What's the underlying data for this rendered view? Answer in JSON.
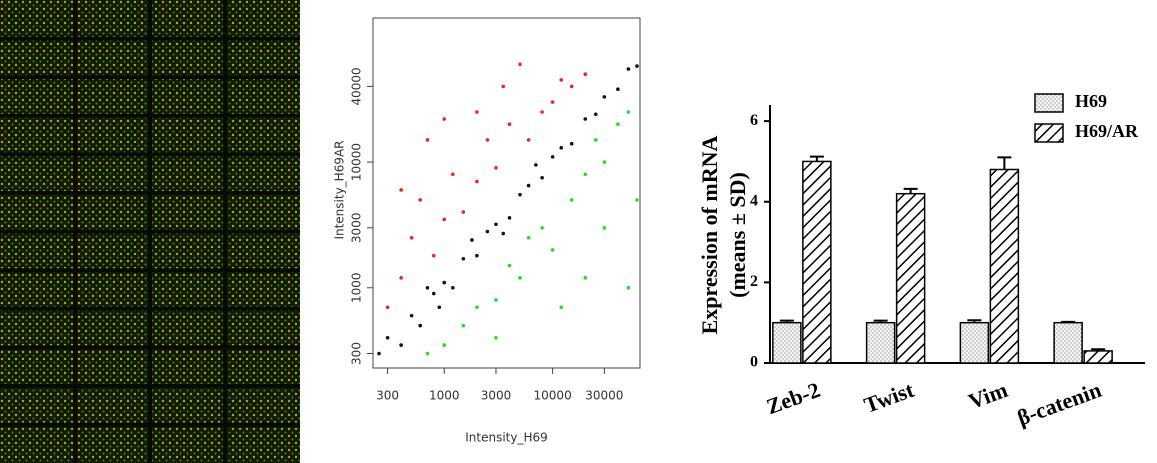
{
  "chart_data": [
    {
      "type": "scatter",
      "xscale": "log",
      "yscale": "log",
      "xlabel": "Intensity_H69",
      "ylabel": "Intensity_H69AR",
      "xlim": [
        220,
        64000
      ],
      "ylim": [
        230,
        140000
      ],
      "xticks": [
        300,
        1000,
        3000,
        10000,
        30000
      ],
      "yticks": [
        300,
        1000,
        3000,
        10000,
        40000
      ],
      "series": [
        {
          "color": "#111111",
          "x": [
            250,
            300,
            400,
            500,
            600,
            800,
            1000,
            1200,
            1500,
            2000,
            2500,
            3000,
            4000,
            5000,
            6000,
            8000,
            10000,
            12000,
            15000,
            20000,
            25000,
            30000,
            40000,
            50000,
            60000,
            700,
            900,
            1800,
            3500,
            7000
          ],
          "values": [
            300,
            400,
            350,
            600,
            500,
            900,
            1100,
            1000,
            1700,
            1800,
            2800,
            3200,
            3600,
            5500,
            6500,
            7500,
            11000,
            13000,
            14000,
            22000,
            24000,
            33000,
            38000,
            55000,
            58000,
            1000,
            700,
            2400,
            2700,
            9500
          ]
        },
        {
          "color": "#ee2222",
          "x": [
            300,
            400,
            500,
            600,
            800,
            1000,
            1200,
            1500,
            2000,
            2500,
            3000,
            4000,
            5000,
            6000,
            8000,
            10000,
            12000,
            15000,
            700,
            1000,
            2000,
            400,
            3500,
            20000
          ],
          "values": [
            700,
            1200,
            2500,
            5000,
            1800,
            3500,
            8000,
            4000,
            7000,
            15000,
            9000,
            20000,
            60000,
            15000,
            25000,
            30000,
            45000,
            40000,
            15000,
            22000,
            25000,
            6000,
            40000,
            50000
          ]
        },
        {
          "color": "#22dd22",
          "x": [
            700,
            1000,
            1500,
            2000,
            3000,
            4000,
            5000,
            8000,
            10000,
            15000,
            20000,
            25000,
            30000,
            40000,
            50000,
            12000,
            20000,
            50000,
            60000,
            3000,
            6000,
            30000
          ],
          "values": [
            300,
            350,
            500,
            700,
            800,
            1500,
            1200,
            3000,
            2000,
            5000,
            8000,
            15000,
            10000,
            20000,
            25000,
            700,
            1200,
            1000,
            5000,
            400,
            2500,
            3000
          ]
        }
      ]
    },
    {
      "type": "bar",
      "ylabel": [
        "Expression of mRNA",
        "(means ± SD)"
      ],
      "categories": [
        "Zeb-2",
        "Twist",
        "Vim",
        "β-catenin"
      ],
      "ylim": [
        0,
        6.4
      ],
      "yticks": [
        0,
        2,
        4,
        6
      ],
      "series": [
        {
          "name": "H69",
          "fill": "dots",
          "values": [
            1.0,
            1.0,
            1.0,
            1.0
          ],
          "errors": [
            0.05,
            0.05,
            0.06,
            0.02
          ]
        },
        {
          "name": "H69/AR",
          "fill": "hatch",
          "values": [
            5.0,
            4.2,
            4.8,
            0.3
          ],
          "errors": [
            0.12,
            0.12,
            0.3,
            0.04
          ]
        }
      ]
    }
  ]
}
